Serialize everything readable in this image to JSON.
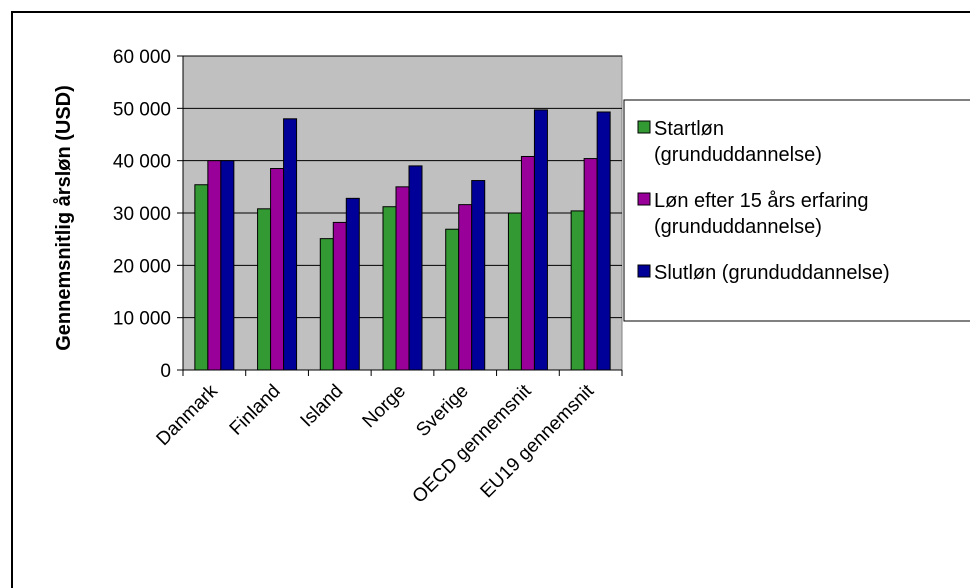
{
  "chart_data": {
    "type": "bar",
    "title": "",
    "xlabel": "",
    "ylabel": "Gennemsnitlig årsløn (USD)",
    "ylim": [
      0,
      60000
    ],
    "yticks": [
      0,
      10000,
      20000,
      30000,
      40000,
      50000,
      60000
    ],
    "ytick_labels": [
      "0",
      "10 000",
      "20 000",
      "30 000",
      "40 000",
      "50 000",
      "60 000"
    ],
    "grid": true,
    "legend_position": "right",
    "plot_background": "#c0c0c0",
    "categories": [
      "Danmark",
      "Finland",
      "Island",
      "Norge",
      "Sverige",
      "OECD gennemsnit",
      "EU19 gennemsnit"
    ],
    "series": [
      {
        "name": "Startløn (grunduddannelse)",
        "legend_lines": [
          "Startløn",
          "(grunduddannelse)"
        ],
        "color": "#339933",
        "values": [
          35400,
          30800,
          25100,
          31200,
          26900,
          30000,
          30400
        ]
      },
      {
        "name": "Løn efter 15 års erfaring (grunduddannelse)",
        "legend_lines": [
          "Løn efter 15 års erfaring",
          "(grunduddannelse)"
        ],
        "color": "#990099",
        "values": [
          40000,
          38500,
          28200,
          35000,
          31600,
          40800,
          40400
        ]
      },
      {
        "name": "Slutløn (grunduddannelse)",
        "legend_lines": [
          "Slutløn (grunduddannelse)"
        ],
        "color": "#000099",
        "values": [
          40000,
          48000,
          32800,
          39000,
          36200,
          49700,
          49300
        ]
      }
    ]
  }
}
